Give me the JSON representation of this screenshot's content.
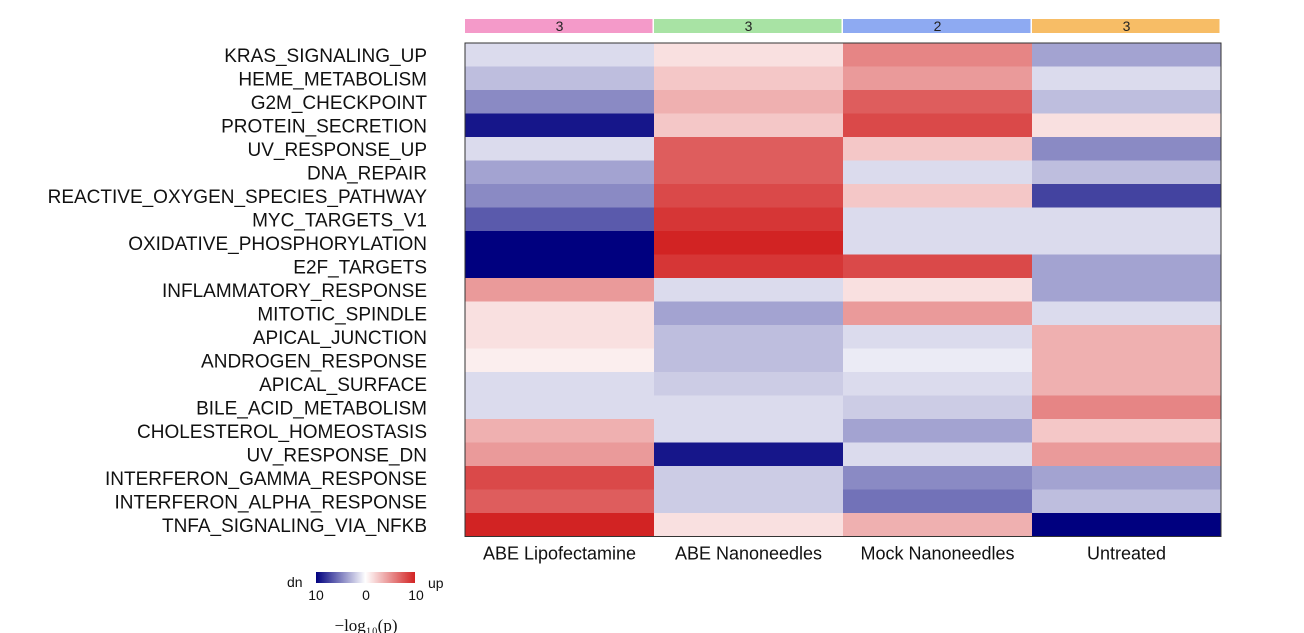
{
  "chart_data": {
    "type": "heatmap",
    "columns": [
      "ABE Lipofectamine",
      "ABE Nanoneedles",
      "Mock Nanoneedles",
      "Untreated"
    ],
    "column_group_counts": [
      "3",
      "3",
      "2",
      "3"
    ],
    "column_group_colors": [
      "#f49ac9",
      "#a8e3a4",
      "#8eaaf2",
      "#f7bd66"
    ],
    "rows": [
      "KRAS_SIGNALING_UP",
      "HEME_METABOLISM",
      "G2M_CHECKPOINT",
      "PROTEIN_SECRETION",
      "UV_RESPONSE_UP",
      "DNA_REPAIR",
      "REACTIVE_OXYGEN_SPECIES_PATHWAY",
      "MYC_TARGETS_V1",
      "OXIDATIVE_PHOSPHORYLATION",
      "E2F_TARGETS",
      "INFLAMMATORY_RESPONSE",
      "MITOTIC_SPINDLE",
      "APICAL_JUNCTION",
      "ANDROGEN_RESPONSE",
      "APICAL_SURFACE",
      "BILE_ACID_METABOLISM",
      "CHOLESTEROL_HOMEOSTASIS",
      "UV_RESPONSE_DN",
      "INTERFERON_GAMMA_RESPONSE",
      "INTERFERON_ALPHA_RESPONSE",
      "TNFA_SIGNALING_VIA_NFKB"
    ],
    "values": [
      [
        -1,
        1,
        5,
        -3
      ],
      [
        -2,
        2,
        4,
        -1
      ],
      [
        -4,
        3,
        7,
        -2
      ],
      [
        -9,
        2,
        8,
        1
      ],
      [
        -1,
        7,
        2,
        -4
      ],
      [
        -3,
        7,
        -1,
        -2
      ],
      [
        -4,
        8,
        2,
        -7
      ],
      [
        -6,
        9,
        -1,
        -1
      ],
      [
        -10,
        10,
        -1,
        -1
      ],
      [
        -10,
        9,
        8,
        -3
      ],
      [
        4,
        -1,
        1,
        -3
      ],
      [
        1,
        -3,
        4,
        -1
      ],
      [
        1,
        -2,
        -1,
        3
      ],
      [
        0.5,
        -2,
        -0.5,
        3
      ],
      [
        -1,
        -1.5,
        -1,
        3
      ],
      [
        -1,
        -1,
        -1.5,
        5
      ],
      [
        3,
        -1,
        -3,
        2
      ],
      [
        4,
        -9,
        -1,
        4
      ],
      [
        8,
        -1.5,
        -4,
        -3
      ],
      [
        7,
        -1.5,
        -5,
        -2
      ],
      [
        10,
        1,
        3,
        -10
      ]
    ],
    "color_scale": {
      "min": -10,
      "mid": 0,
      "max": 10,
      "low_color": "#00007f",
      "mid_color": "#ffffff",
      "high_color": "#d22323",
      "ticks": [
        "10",
        "0",
        "10"
      ],
      "low_label": "dn",
      "high_label": "up",
      "title": "−log₁₀(p)"
    },
    "legend_placement": "bottom-left"
  }
}
